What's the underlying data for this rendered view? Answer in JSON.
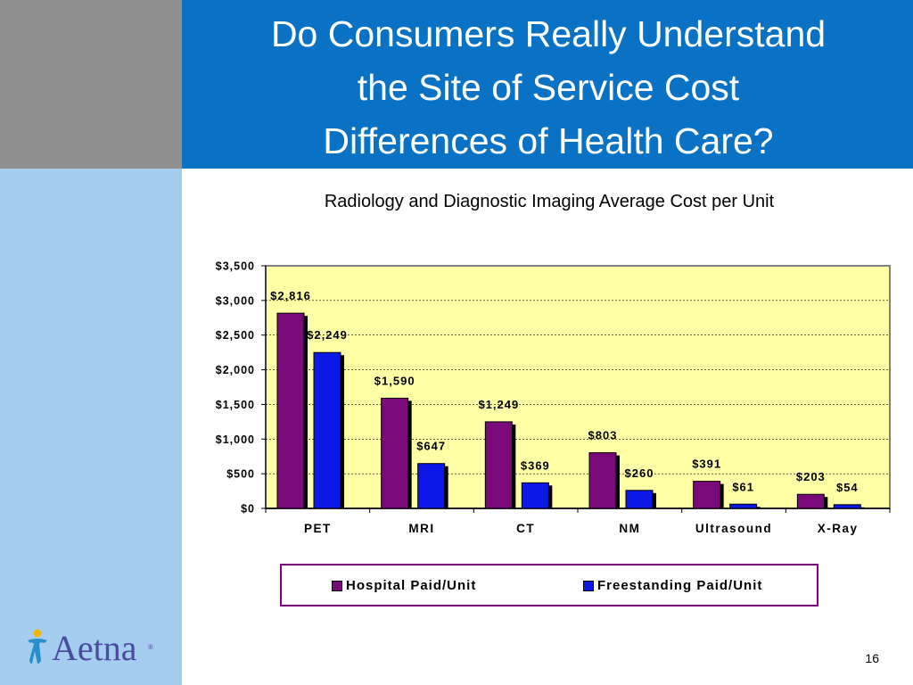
{
  "slide": {
    "title_lines": [
      "Do Consumers Really Understand",
      "the Site of Service Cost",
      "Differences of Health Care?"
    ],
    "page_number": "16",
    "logo_text": "Aetna"
  },
  "colors": {
    "header_blue": "#0a72c4",
    "left_stripe": "#a5cdf0",
    "gray_corner": "#8f8f8f",
    "plot_bg": "#ffffa6",
    "hospital": "#7a0a7a",
    "freestanding": "#0b18e6"
  },
  "chart_data": {
    "type": "bar",
    "title": "Radiology and Diagnostic Imaging Average Cost per Unit",
    "categories": [
      "PET",
      "MRI",
      "CT",
      "NM",
      "Ultrasound",
      "X-Ray"
    ],
    "series": [
      {
        "name": "Hospital Paid/Unit",
        "values": [
          2816,
          1590,
          1249,
          803,
          391,
          203
        ],
        "labels": [
          "$2,816",
          "$1,590",
          "$1,249",
          "$803",
          "$391",
          "$203"
        ]
      },
      {
        "name": "Freestanding Paid/Unit",
        "values": [
          2249,
          647,
          369,
          260,
          61,
          54
        ],
        "labels": [
          "$2,249",
          "$647",
          "$369",
          "$260",
          "$61",
          "$54"
        ]
      }
    ],
    "ylim": [
      0,
      3500
    ],
    "yticks": [
      0,
      500,
      1000,
      1500,
      2000,
      2500,
      3000,
      3500
    ],
    "ytick_labels": [
      "$0",
      "$500",
      "$1,000",
      "$1,500",
      "$2,000",
      "$2,500",
      "$3,000",
      "$3,500"
    ],
    "grid": true,
    "legend_position": "bottom"
  }
}
